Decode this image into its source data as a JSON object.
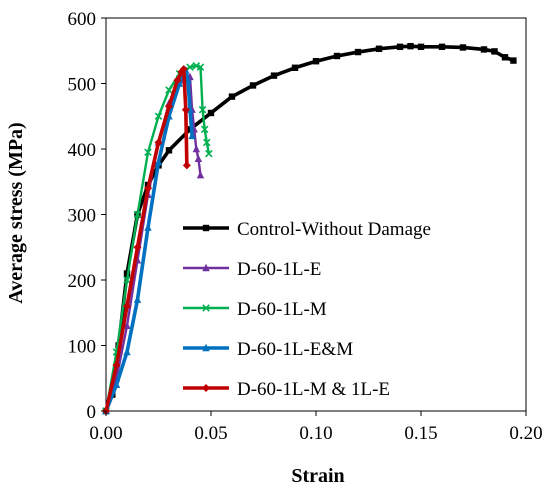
{
  "chart_data": {
    "type": "line",
    "xlabel": "Strain",
    "ylabel": "Average stress (MPa)",
    "xlim": [
      0,
      0.2
    ],
    "ylim": [
      0,
      600
    ],
    "xticks": [
      "0.00",
      "0.05",
      "0.10",
      "0.15",
      "0.20"
    ],
    "yticks": [
      "0",
      "100",
      "200",
      "300",
      "400",
      "500",
      "600"
    ],
    "grid": false,
    "legend_position": "bottom-right",
    "series": [
      {
        "name": "Control-Without Damage",
        "color": "#000000",
        "marker": "square",
        "line_width": "thick",
        "x": [
          0.0,
          0.003,
          0.006,
          0.01,
          0.015,
          0.02,
          0.025,
          0.03,
          0.04,
          0.05,
          0.06,
          0.07,
          0.08,
          0.09,
          0.1,
          0.11,
          0.12,
          0.13,
          0.14,
          0.145,
          0.15,
          0.16,
          0.17,
          0.18,
          0.185,
          0.19,
          0.194
        ],
        "y": [
          0,
          25,
          100,
          210,
          300,
          345,
          375,
          398,
          430,
          455,
          480,
          497,
          512,
          524,
          534,
          542,
          548,
          553,
          556,
          557,
          556,
          556,
          555,
          552,
          549,
          540,
          535
        ]
      },
      {
        "name": "D-60-1L-E",
        "color": "#7030a0",
        "marker": "triangle",
        "line_width": "normal",
        "x": [
          0.0,
          0.005,
          0.01,
          0.015,
          0.02,
          0.025,
          0.03,
          0.035,
          0.038,
          0.04,
          0.041,
          0.042,
          0.043,
          0.044,
          0.045
        ],
        "y": [
          0,
          50,
          130,
          230,
          330,
          410,
          470,
          505,
          515,
          510,
          460,
          430,
          400,
          385,
          360
        ]
      },
      {
        "name": "D-60-1L-M",
        "color": "#00b050",
        "marker": "x",
        "line_width": "normal",
        "x": [
          0.0,
          0.005,
          0.01,
          0.015,
          0.02,
          0.025,
          0.03,
          0.035,
          0.04,
          0.043,
          0.045,
          0.046,
          0.047,
          0.048,
          0.049
        ],
        "y": [
          0,
          90,
          200,
          300,
          395,
          450,
          490,
          515,
          525,
          527,
          525,
          460,
          430,
          410,
          393
        ]
      },
      {
        "name": "D-60-1L-E&M",
        "color": "#0070c0",
        "marker": "triangle",
        "line_width": "thick",
        "x": [
          0.0,
          0.005,
          0.01,
          0.015,
          0.02,
          0.025,
          0.03,
          0.035,
          0.037,
          0.038,
          0.039,
          0.04,
          0.041
        ],
        "y": [
          0,
          40,
          90,
          170,
          280,
          380,
          450,
          500,
          515,
          520,
          505,
          460,
          420
        ]
      },
      {
        "name": "D-60-1L-M & 1L-E",
        "color": "#c00000",
        "marker": "diamond",
        "line_width": "thick",
        "x": [
          0.0,
          0.005,
          0.01,
          0.015,
          0.02,
          0.025,
          0.03,
          0.034,
          0.036,
          0.037,
          0.038,
          0.0385
        ],
        "y": [
          0,
          70,
          160,
          250,
          340,
          410,
          465,
          505,
          518,
          522,
          460,
          375
        ]
      }
    ]
  }
}
